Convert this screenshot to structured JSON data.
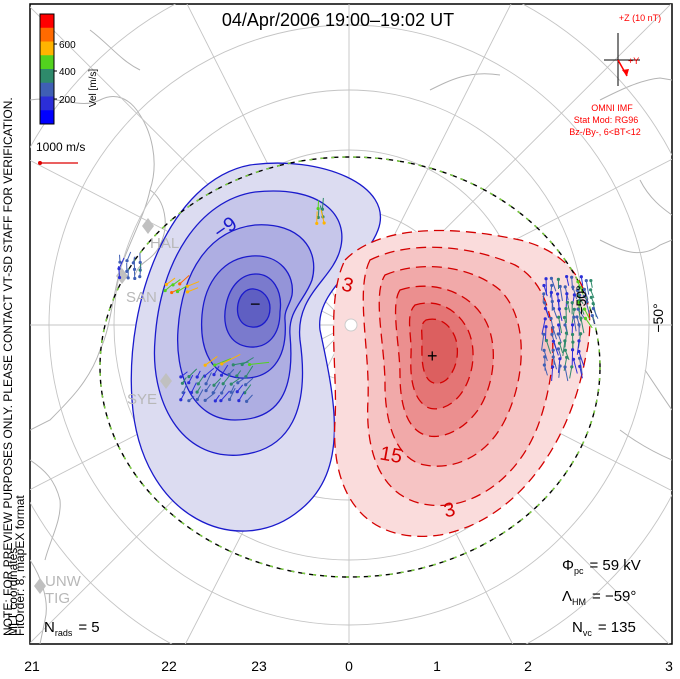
{
  "title": "04/Apr/2006 19:00–19:02 UT",
  "coords": "MLT coordinates",
  "colorbar": {
    "label": "Vel [m/s]",
    "ticks": [
      "600",
      "400",
      "200"
    ],
    "colors": [
      "#ff0000",
      "#ff6a00",
      "#ffb400",
      "#52d21e",
      "#2e8a6b",
      "#3f5fb4",
      "#2b2ed8",
      "#0000ff"
    ]
  },
  "vector_scale": "1000 m/s",
  "imf": {
    "z_label": "+Z (10 nT)",
    "y_label": "+Y",
    "source": "OMNI IMF",
    "model": "Stat Mod: RG96",
    "condition": "Bz-/By-, 6<BT<12",
    "color": "#ff0000"
  },
  "note": "NOTE: FOR PREVIEW PURPOSES ONLY. PLEASE CONTACT VT-SD STAFF FOR VERIFICATION.",
  "fit_order": "FitOrder: 8, mapEX format",
  "radars": [
    "HAL",
    "SAN",
    "SYE",
    "UNW",
    "TIG"
  ],
  "lat_label": "−50°",
  "contours": {
    "neg_label": "−9",
    "neg_low": "−",
    "pos_label_a": "3",
    "pos_label_b": "15",
    "pos_label_c": "3",
    "pos_max": "+",
    "neg_color": "#1a1acc",
    "pos_color": "#d40000"
  },
  "stats": {
    "phi_sym": "Φ",
    "phi_sub": "pc",
    "phi_val": "= 59 kV",
    "lam_sym": "Λ",
    "lam_sub": "HM",
    "lam_val": "= −59°",
    "n_sym": "N",
    "n_sub": "vc",
    "n_val": "= 135",
    "rads_sym": "N",
    "rads_sub": "rads",
    "rads_val": "= 5"
  },
  "mlt_ticks": [
    "21",
    "22",
    "23",
    "0",
    "1",
    "2",
    "3"
  ]
}
